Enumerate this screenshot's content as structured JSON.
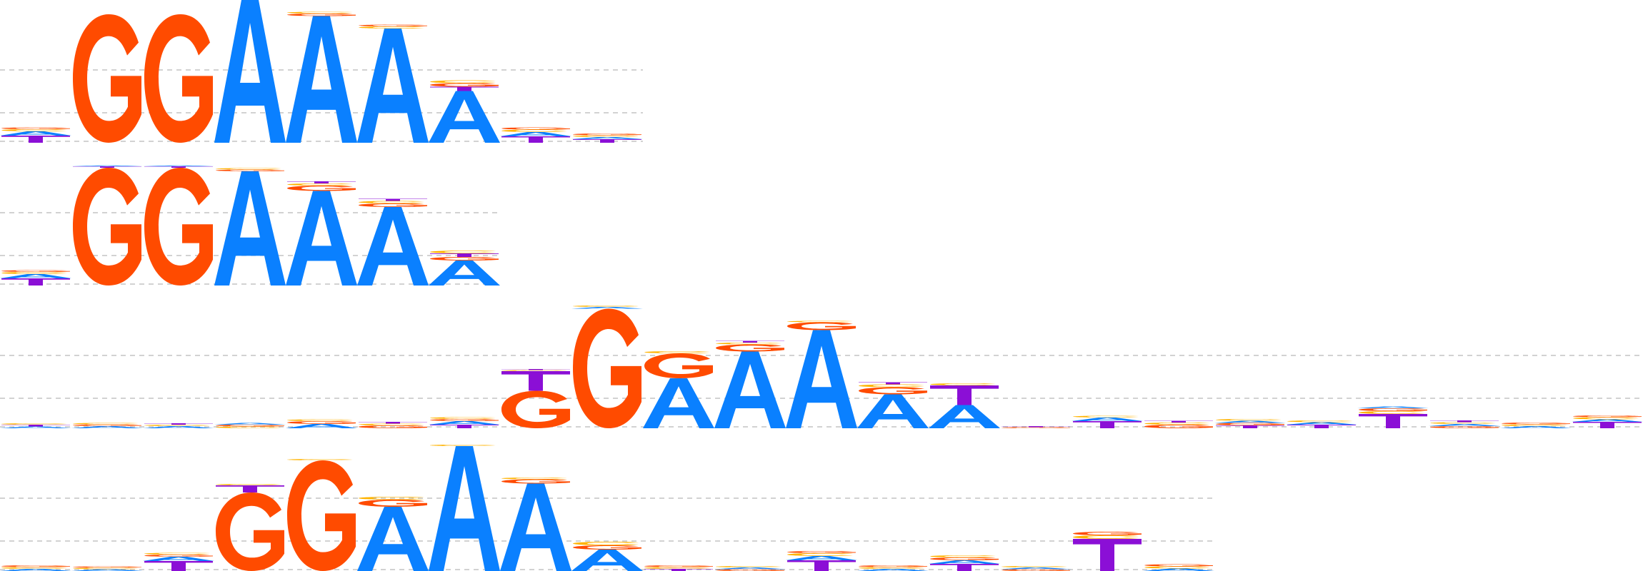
{
  "colors": {
    "A": "#0a80ff",
    "C": "#ffb300",
    "G": "#ff4b00",
    "T": "#8b0fd6"
  },
  "logos": [
    {
      "name": "motif-logo-1",
      "columns": [
        [
          [
            "C",
            0.06
          ],
          [
            "G",
            0.05
          ],
          [
            "A",
            0.12
          ],
          [
            "T",
            0.2
          ]
        ],
        [
          [
            "G",
            3.6
          ]
        ],
        [
          [
            "G",
            3.6
          ]
        ],
        [
          [
            "A",
            4.0
          ]
        ],
        [
          [
            "C",
            0.05
          ],
          [
            "G",
            0.07
          ],
          [
            "A",
            3.55
          ]
        ],
        [
          [
            "C",
            0.06
          ],
          [
            "G",
            0.05
          ],
          [
            "A",
            3.2
          ]
        ],
        [
          [
            "C",
            0.08
          ],
          [
            "G",
            0.1
          ],
          [
            "T",
            0.12
          ],
          [
            "A",
            1.45
          ]
        ],
        [
          [
            "C",
            0.07
          ],
          [
            "G",
            0.06
          ],
          [
            "A",
            0.12
          ],
          [
            "T",
            0.18
          ]
        ],
        [
          [
            "C",
            0.05
          ],
          [
            "G",
            0.05
          ],
          [
            "A",
            0.06
          ],
          [
            "T",
            0.1
          ]
        ]
      ]
    },
    {
      "name": "motif-logo-2",
      "columns": [
        [
          [
            "C",
            0.06
          ],
          [
            "G",
            0.05
          ],
          [
            "A",
            0.12
          ],
          [
            "T",
            0.2
          ]
        ],
        [
          [
            "A",
            0.02
          ],
          [
            "T",
            0.04
          ],
          [
            "G",
            3.3
          ]
        ],
        [
          [
            "A",
            0.02
          ],
          [
            "T",
            0.04
          ],
          [
            "G",
            3.3
          ]
        ],
        [
          [
            "C",
            0.04
          ],
          [
            "G",
            0.05
          ],
          [
            "A",
            3.2
          ]
        ],
        [
          [
            "C",
            0.06
          ],
          [
            "G",
            0.15
          ],
          [
            "T",
            0.06
          ],
          [
            "A",
            2.65
          ]
        ],
        [
          [
            "C",
            0.07
          ],
          [
            "G",
            0.1
          ],
          [
            "T",
            0.06
          ],
          [
            "A",
            2.2
          ]
        ],
        [
          [
            "C",
            0.08
          ],
          [
            "G",
            0.1
          ],
          [
            "T",
            0.1
          ],
          [
            "A",
            0.7
          ]
        ]
      ]
    },
    {
      "name": "motif-logo-3",
      "columns": [
        [
          [
            "C",
            0.04
          ],
          [
            "A",
            0.05
          ],
          [
            "T",
            0.05
          ]
        ],
        [
          [
            "C",
            0.04
          ],
          [
            "G",
            0.05
          ],
          [
            "A",
            0.06
          ]
        ],
        [
          [
            "C",
            0.04
          ],
          [
            "T",
            0.04
          ],
          [
            "A",
            0.06
          ]
        ],
        [
          [
            "C",
            0.05
          ],
          [
            "G",
            0.05
          ],
          [
            "A",
            0.05
          ]
        ],
        [
          [
            "C",
            0.05
          ],
          [
            "G",
            0.08
          ],
          [
            "A",
            0.12
          ]
        ],
        [
          [
            "C",
            0.05
          ],
          [
            "G",
            0.08
          ],
          [
            "T",
            0.05
          ]
        ],
        [
          [
            "C",
            0.05
          ],
          [
            "G",
            0.06
          ],
          [
            "T",
            0.1
          ],
          [
            "A",
            0.1
          ]
        ],
        [
          [
            "C",
            0.03
          ],
          [
            "T",
            0.03
          ],
          [
            "G",
            1.05
          ],
          [
            "T",
            0.55
          ]
        ],
        [
          [
            "C",
            0.04
          ],
          [
            "A",
            0.05
          ],
          [
            "G",
            3.35
          ]
        ],
        [
          [
            "C",
            0.06
          ],
          [
            "A",
            1.4
          ],
          [
            "G",
            0.7
          ]
        ],
        [
          [
            "C",
            0.05
          ],
          [
            "T",
            0.05
          ],
          [
            "G",
            0.2
          ],
          [
            "A",
            2.15
          ]
        ],
        [
          [
            "C",
            0.04
          ],
          [
            "G",
            0.22
          ],
          [
            "A",
            2.75
          ]
        ],
        [
          [
            "C",
            0.08
          ],
          [
            "G",
            0.2
          ],
          [
            "T",
            0.06
          ],
          [
            "A",
            0.95
          ]
        ],
        [
          [
            "C",
            0.06
          ],
          [
            "A",
            0.65
          ],
          [
            "T",
            0.55
          ]
        ],
        [
          [
            "G",
            0.03
          ],
          [
            "T",
            0.03
          ]
        ],
        [
          [
            "C",
            0.05
          ],
          [
            "T",
            0.2
          ],
          [
            "A",
            0.1
          ]
        ],
        [
          [
            "C",
            0.06
          ],
          [
            "G",
            0.1
          ],
          [
            "T",
            0.05
          ]
        ],
        [
          [
            "C",
            0.05
          ],
          [
            "G",
            0.07
          ],
          [
            "A",
            0.06
          ],
          [
            "T",
            0.08
          ]
        ],
        [
          [
            "C",
            0.05
          ],
          [
            "A",
            0.07
          ],
          [
            "T",
            0.1
          ]
        ],
        [
          [
            "C",
            0.08
          ],
          [
            "G",
            0.08
          ],
          [
            "A",
            0.05
          ],
          [
            "T",
            0.4
          ]
        ],
        [
          [
            "C",
            0.05
          ],
          [
            "G",
            0.06
          ],
          [
            "A",
            0.06
          ],
          [
            "T",
            0.05
          ]
        ],
        [
          [
            "C",
            0.05
          ],
          [
            "G",
            0.05
          ],
          [
            "A",
            0.06
          ]
        ],
        [
          [
            "C",
            0.06
          ],
          [
            "G",
            0.05
          ],
          [
            "A",
            0.07
          ],
          [
            "T",
            0.18
          ]
        ],
        [
          [
            "C",
            0.05
          ],
          [
            "G",
            0.05
          ],
          [
            "A",
            0.06
          ]
        ]
      ]
    },
    {
      "name": "motif-logo-4",
      "columns": [
        [
          [
            "C",
            0.05
          ],
          [
            "G",
            0.05
          ],
          [
            "A",
            0.06
          ]
        ],
        [
          [
            "C",
            0.04
          ],
          [
            "G",
            0.04
          ],
          [
            "A",
            0.05
          ]
        ],
        [
          [
            "C",
            0.05
          ],
          [
            "G",
            0.06
          ],
          [
            "A",
            0.12
          ],
          [
            "T",
            0.28
          ]
        ],
        [
          [
            "C",
            0.04
          ],
          [
            "G",
            2.2
          ],
          [
            "T",
            0.2
          ]
        ],
        [
          [
            "C",
            0.04
          ],
          [
            "G",
            3.1
          ]
        ],
        [
          [
            "C",
            0.08
          ],
          [
            "G",
            0.2
          ],
          [
            "A",
            1.8
          ]
        ],
        [
          [
            "C",
            0.04
          ],
          [
            "A",
            3.5
          ]
        ],
        [
          [
            "C",
            0.05
          ],
          [
            "G",
            0.12
          ],
          [
            "A",
            2.45
          ]
        ],
        [
          [
            "C",
            0.1
          ],
          [
            "G",
            0.12
          ],
          [
            "A",
            0.6
          ]
        ],
        [
          [
            "C",
            0.05
          ],
          [
            "G",
            0.05
          ],
          [
            "T",
            0.06
          ]
        ],
        [
          [
            "C",
            0.04
          ],
          [
            "G",
            0.05
          ],
          [
            "A",
            0.05
          ]
        ],
        [
          [
            "C",
            0.08
          ],
          [
            "G",
            0.06
          ],
          [
            "A",
            0.12
          ],
          [
            "T",
            0.3
          ]
        ],
        [
          [
            "C",
            0.05
          ],
          [
            "G",
            0.05
          ],
          [
            "A",
            0.06
          ]
        ],
        [
          [
            "C",
            0.06
          ],
          [
            "G",
            0.08
          ],
          [
            "A",
            0.1
          ],
          [
            "T",
            0.2
          ]
        ],
        [
          [
            "C",
            0.04
          ],
          [
            "G",
            0.05
          ],
          [
            "A",
            0.05
          ]
        ],
        [
          [
            "C",
            0.1
          ],
          [
            "G",
            0.1
          ],
          [
            "T",
            0.9
          ]
        ],
        [
          [
            "C",
            0.06
          ],
          [
            "G",
            0.06
          ],
          [
            "A",
            0.07
          ]
        ]
      ]
    }
  ]
}
